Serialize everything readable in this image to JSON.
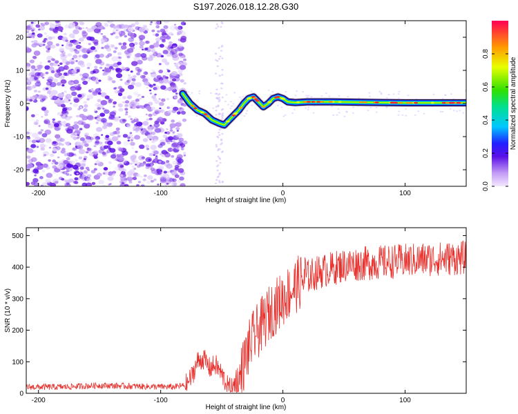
{
  "title": "S197.2026.018.12.28.G30",
  "colors": {
    "snr_line": "#e8302c",
    "track_edge": "#000000",
    "scatter": "#7a30e0"
  },
  "chart_data": [
    {
      "type": "heatmap",
      "title": "S197.2026.018.12.28.G30",
      "xlabel": "Height of straight line (km)",
      "ylabel": "Frequency (Hz)",
      "xlim": [
        -210,
        150
      ],
      "ylim": [
        -25,
        25
      ],
      "xticks": [
        -200,
        -100,
        0,
        100
      ],
      "yticks": [
        -20,
        -10,
        0,
        10,
        20
      ],
      "colorbar": {
        "label": "Normalized spectral amplitude",
        "range": [
          0,
          1
        ],
        "ticks": [
          0.0,
          0.2,
          0.4,
          0.6,
          0.8
        ]
      },
      "noise_region_x": [
        -210,
        -80
      ],
      "track": {
        "x": [
          -82,
          -76,
          -70,
          -64,
          -58,
          -52,
          -48,
          -44,
          -40,
          -36,
          -32,
          -28,
          -24,
          -20,
          -16,
          -12,
          -8,
          -4,
          0,
          4,
          10,
          20,
          40,
          60,
          80,
          100,
          120,
          150
        ],
        "y": [
          3,
          0,
          -2,
          -3,
          -5,
          -6,
          -6.5,
          -5,
          -3.5,
          -2,
          0,
          1.5,
          2,
          0.5,
          -1,
          0,
          1.5,
          2,
          1.5,
          0.5,
          0.3,
          0.5,
          0.5,
          0.4,
          0.3,
          0.2,
          0.2,
          0.2
        ]
      }
    },
    {
      "type": "line",
      "xlabel": "Height of straight line (km)",
      "ylabel": "SNR (10 * v/v)",
      "xlim": [
        -210,
        150
      ],
      "ylim": [
        0,
        525
      ],
      "xticks": [
        -200,
        -100,
        0,
        100
      ],
      "yticks": [
        0,
        100,
        200,
        300,
        400,
        500
      ],
      "series": [
        {
          "name": "SNR",
          "x": [
            -210,
            -180,
            -150,
            -120,
            -90,
            -80,
            -75,
            -70,
            -65,
            -60,
            -55,
            -50,
            -45,
            -40,
            -35,
            -30,
            -25,
            -20,
            -15,
            -10,
            -5,
            0,
            5,
            10,
            15,
            20,
            30,
            40,
            50,
            60,
            80,
            100,
            120,
            150
          ],
          "values": [
            20,
            20,
            25,
            22,
            20,
            25,
            50,
            100,
            110,
            80,
            90,
            60,
            20,
            10,
            50,
            120,
            170,
            200,
            230,
            260,
            280,
            300,
            320,
            340,
            355,
            370,
            385,
            395,
            405,
            410,
            415,
            420,
            425,
            430
          ]
        }
      ]
    }
  ]
}
